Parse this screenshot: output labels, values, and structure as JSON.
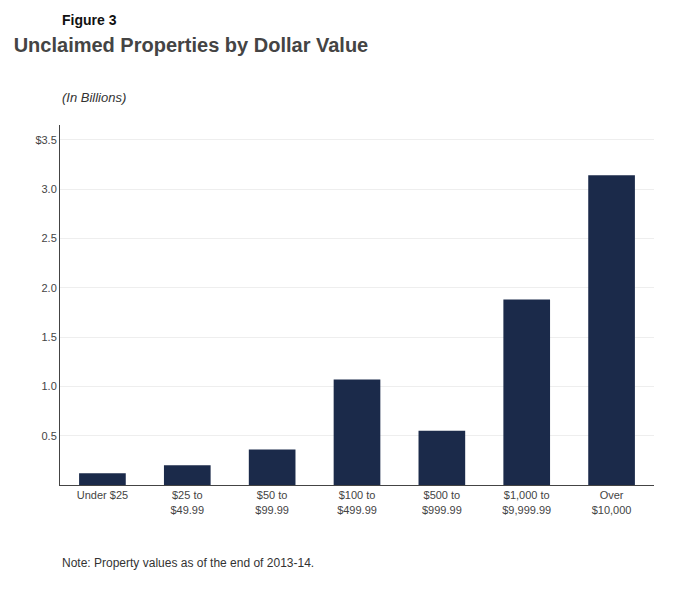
{
  "chart_data": {
    "type": "bar",
    "title": "Unclaimed Properties by Dollar Value",
    "subtitle": "(In Billions)",
    "annotations": [
      "Figure 3",
      "Note: Property values as of the end of 2013-14."
    ],
    "categories": [
      "Under $25",
      "$25 to\n$49.99",
      "$50 to\n$99.99",
      "$100 to\n$499.99",
      "$500 to\n$999.99",
      "$1,000 to\n$9,999.99",
      "Over\n$10,000"
    ],
    "values": [
      0.12,
      0.2,
      0.36,
      1.07,
      0.55,
      1.88,
      3.14
    ],
    "color": "#1B2A4A",
    "ylim": [
      0,
      3.65
    ],
    "yticks": [
      0.5,
      {
        "value": 1.0,
        "label": "1.0"
      },
      1.5,
      {
        "value": 2.0,
        "label": "2.0"
      },
      2.5,
      {
        "value": 3.0,
        "label": "3.0"
      },
      {
        "value": 3.5,
        "label": "$3.5"
      }
    ],
    "grid": true
  }
}
